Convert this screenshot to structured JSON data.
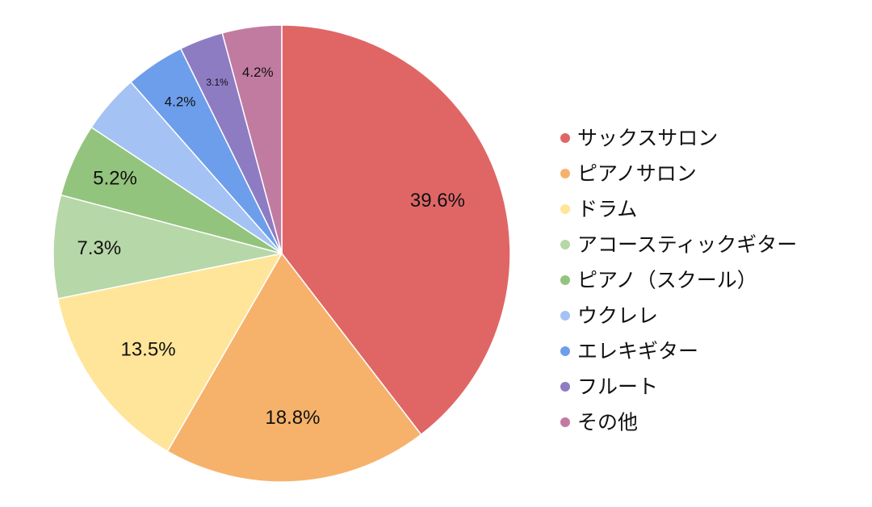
{
  "chart_data": {
    "type": "pie",
    "title": "",
    "legend_position": "right",
    "start": "12 o'clock, clockwise",
    "slices": [
      {
        "label": "サックスサロン",
        "value": 39.6,
        "value_label": "39.6%",
        "color": "#e06666"
      },
      {
        "label": "ピアノサロン",
        "value": 18.8,
        "value_label": "18.8%",
        "color": "#f6b26b"
      },
      {
        "label": "ドラム",
        "value": 13.5,
        "value_label": "13.5%",
        "color": "#ffe599"
      },
      {
        "label": "アコースティックギター",
        "value": 7.3,
        "value_label": "7.3%",
        "color": "#b6d7a8"
      },
      {
        "label": "ピアノ（スクール）",
        "value": 5.2,
        "value_label": "5.2%",
        "color": "#93c47d"
      },
      {
        "label": "ウクレレ",
        "value": 4.2,
        "value_label": "",
        "color": "#a4c2f4"
      },
      {
        "label": "エレキギター",
        "value": 4.2,
        "value_label": "4.2%",
        "color": "#6d9eeb"
      },
      {
        "label": "フルート",
        "value": 3.1,
        "value_label": "3.1%",
        "color": "#8e7cc3"
      },
      {
        "label": "その他",
        "value": 4.2,
        "value_label": "4.2%",
        "color": "#c27ba0"
      }
    ]
  }
}
